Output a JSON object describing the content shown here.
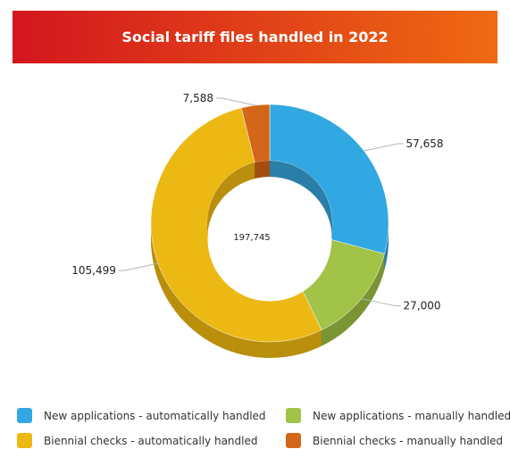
{
  "header": {
    "title": "Social tariff files handled in 2022",
    "gradient_start": "#d3161e",
    "gradient_end": "#ee6a12"
  },
  "chart_data": {
    "type": "pie",
    "variant": "donut-3d",
    "title": "Social tariff files handled in 2022",
    "center_label": "197,745",
    "slices": [
      {
        "name": "New applications - automatically handled",
        "value": 57658,
        "label": "57,658",
        "color": "#32a8e2",
        "shade": "#2a7fa9"
      },
      {
        "name": "New applications - manually handled",
        "value": 27000,
        "label": "27,000",
        "color": "#a1c347",
        "shade": "#7a9535"
      },
      {
        "name": "Biennial checks - automatically handled",
        "value": 105499,
        "label": "105,499",
        "color": "#ecb813",
        "shade": "#b98f0d"
      },
      {
        "name": "Biennial checks - manually handled",
        "value": 7588,
        "label": "7,588",
        "color": "#d46619",
        "shade": "#a44d11"
      }
    ],
    "legend_position": "bottom"
  }
}
